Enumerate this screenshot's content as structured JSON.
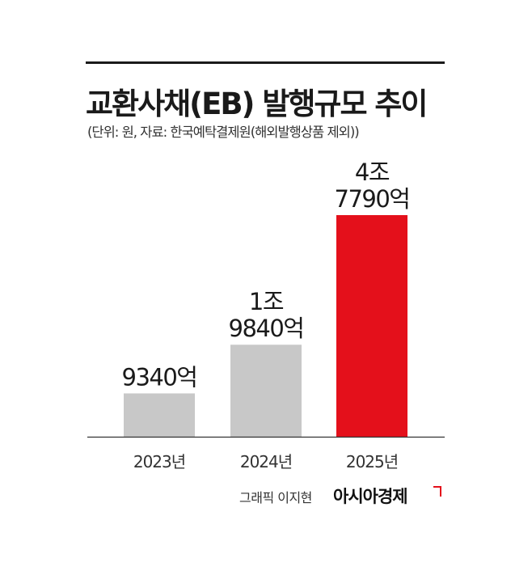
{
  "header": {
    "title": "교환사채(EB) 발행규모 추이",
    "subtitle": "(단위: 원, 자료: 한국예탁결제원(해외발행상품 제외))"
  },
  "chart_data": {
    "type": "bar",
    "categories": [
      "2023년",
      "2024년",
      "2025년"
    ],
    "values": [
      9340,
      19840,
      47790
    ],
    "value_labels": [
      [
        "9340억"
      ],
      [
        "1조",
        "9840억"
      ],
      [
        "4조",
        "7790억"
      ]
    ],
    "colors": [
      "#c8c8c8",
      "#c8c8c8",
      "#e4101b"
    ],
    "ylim": [
      0,
      47790
    ],
    "grid": false,
    "legend": "none"
  },
  "footer": {
    "credit": "그래픽 이지현",
    "brand": "아시아경제"
  }
}
